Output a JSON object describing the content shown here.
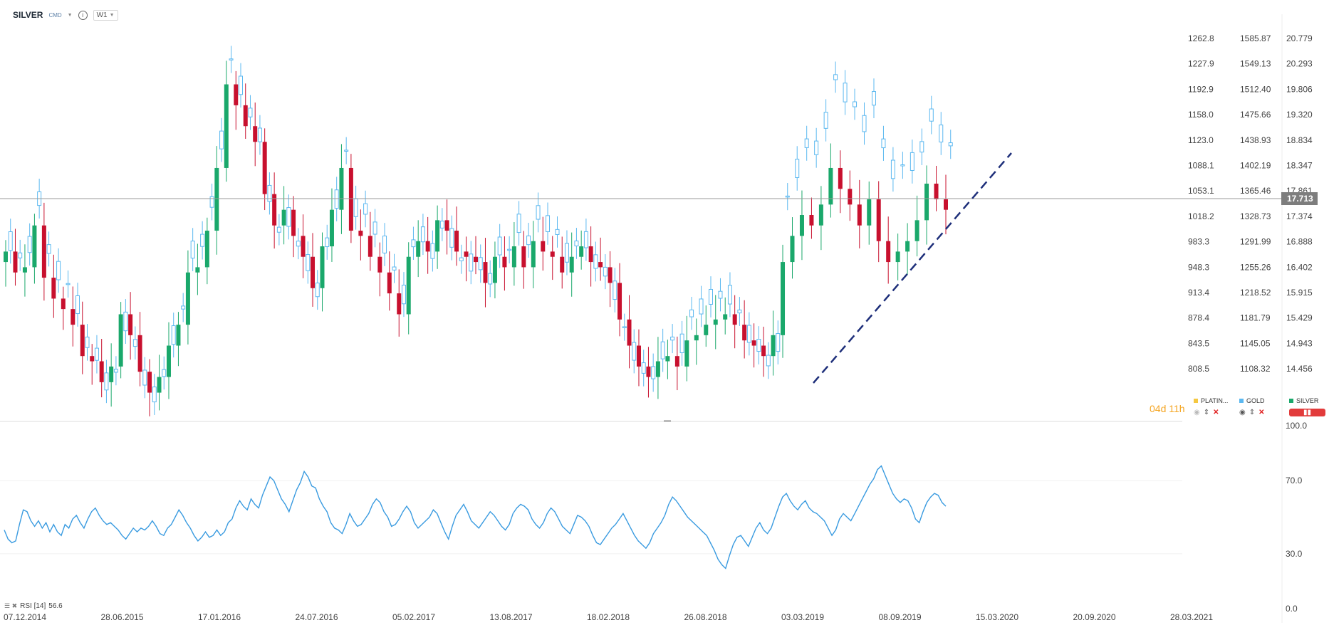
{
  "toolbar": {
    "symbol": "SILVER",
    "market": "CMD",
    "timeframe": "W1"
  },
  "countdown": "04d 11h",
  "legend": [
    {
      "name": "PLATIN...",
      "color": "#f5c842"
    },
    {
      "name": "GOLD",
      "color": "#5bb8f0"
    },
    {
      "name": "SILVER",
      "color": "#1aa86b"
    }
  ],
  "current_price_label": "17.713",
  "rsi_label": "RSI [14]",
  "rsi_value": "56.6",
  "colors": {
    "up": "#1aa86b",
    "down": "#c8102e",
    "gold": "#5bb8f0",
    "trendline": "#1e2f7a",
    "rsi_line": "#3a9be0",
    "grid": "#e8e8e8"
  },
  "chart_data": [
    {
      "type": "candlestick",
      "series": [
        {
          "name": "SILVER",
          "style": "candles",
          "color_up": "#1aa86b",
          "color_down": "#c8102e"
        },
        {
          "name": "GOLD",
          "style": "hollow candles",
          "color": "#5bb8f0"
        }
      ],
      "x_tick_labels": [
        "07.12.2014",
        "28.06.2015",
        "17.01.2016",
        "24.07.2016",
        "05.02.2017",
        "13.08.2017",
        "18.02.2018",
        "26.08.2018",
        "03.03.2019",
        "08.09.2019",
        "15.03.2020",
        "20.09.2020",
        "28.03.2021"
      ],
      "axis_platinum": [
        "1262.8",
        "1227.9",
        "1192.9",
        "1158.0",
        "1123.0",
        "1088.1",
        "1053.1",
        "1018.2",
        "983.3",
        "948.3",
        "913.4",
        "878.4",
        "843.5",
        "808.5"
      ],
      "axis_gold": [
        "1585.87",
        "1549.13",
        "1512.40",
        "1475.66",
        "1438.93",
        "1402.19",
        "1365.46",
        "1328.73",
        "1291.99",
        "1255.26",
        "1218.52",
        "1181.79",
        "1145.05",
        "1108.32"
      ],
      "axis_silver": [
        "20.779",
        "20.293",
        "19.806",
        "19.320",
        "18.834",
        "18.347",
        "17.861",
        "17.374",
        "16.888",
        "16.402",
        "15.915",
        "15.429",
        "14.943",
        "14.456"
      ],
      "silver_weekly_close_samples": [
        16.7,
        16.3,
        16.4,
        17.2,
        16.2,
        15.8,
        15.6,
        15.3,
        14.7,
        14.6,
        14.2,
        14.5,
        15.5,
        15.1,
        14.4,
        14.0,
        14.3,
        14.9,
        15.3,
        16.3,
        16.4,
        17.1,
        18.3,
        19.9,
        19.5,
        19.1,
        18.8,
        17.8,
        17.2,
        17.5,
        17.0,
        16.6,
        16.0,
        16.8,
        17.5,
        18.3,
        17.1,
        17.0,
        16.6,
        16.3,
        15.9,
        15.5,
        16.6,
        16.9,
        16.7,
        17.3,
        17.1,
        16.7,
        16.6,
        16.5,
        16.1,
        16.6,
        16.4,
        16.8,
        16.4,
        16.9,
        16.7,
        16.6,
        16.3,
        16.6,
        16.8,
        16.5,
        16.4,
        16.1,
        15.4,
        14.9,
        14.5,
        14.3,
        14.6,
        14.7,
        14.5,
        15.0,
        15.1,
        15.3,
        15.4,
        15.5,
        15.3,
        15.0,
        14.9,
        14.7,
        15.1,
        16.5,
        17.0,
        17.4,
        17.2,
        17.6,
        18.3,
        17.9,
        17.6,
        17.2,
        17.7,
        16.9,
        16.5,
        16.7,
        16.9,
        17.3,
        18.0,
        17.7,
        17.5
      ],
      "trendline": {
        "style": "dashed",
        "from_date": "03.03.2019",
        "to_date": "15.03.2020",
        "direction": "ascending"
      },
      "current_price": 17.713,
      "grid": true
    },
    {
      "type": "line",
      "title": "",
      "series": [
        {
          "name": "RSI [14]",
          "color": "#3a9be0"
        }
      ],
      "ylim": [
        0,
        100
      ],
      "y_tick_labels": [
        "100.0",
        "70.0",
        "30.0",
        "0.0"
      ],
      "values": [
        43,
        38,
        36,
        37,
        46,
        54,
        53,
        48,
        45,
        48,
        44,
        47,
        42,
        46,
        42,
        40,
        46,
        44,
        49,
        51,
        47,
        44,
        49,
        53,
        55,
        51,
        48,
        46,
        47,
        45,
        43,
        40,
        38,
        41,
        44,
        42,
        44,
        43,
        45,
        48,
        45,
        41,
        40,
        44,
        46,
        50,
        54,
        51,
        47,
        44,
        40,
        37,
        39,
        42,
        39,
        40,
        43,
        40,
        42,
        47,
        49,
        55,
        59,
        56,
        54,
        60,
        57,
        55,
        62,
        67,
        72,
        70,
        65,
        60,
        57,
        53,
        59,
        65,
        69,
        75,
        72,
        67,
        66,
        60,
        56,
        53,
        47,
        44,
        43,
        41,
        46,
        52,
        48,
        45,
        46,
        49,
        52,
        57,
        60,
        58,
        53,
        50,
        45,
        46,
        49,
        53,
        56,
        53,
        47,
        44,
        46,
        48,
        50,
        54,
        52,
        47,
        42,
        38,
        45,
        51,
        54,
        57,
        53,
        48,
        46,
        44,
        47,
        50,
        53,
        51,
        48,
        45,
        43,
        46,
        52,
        55,
        57,
        56,
        54,
        49,
        46,
        44,
        47,
        52,
        55,
        53,
        49,
        45,
        43,
        41,
        46,
        51,
        50,
        48,
        45,
        40,
        36,
        35,
        38,
        41,
        44,
        46,
        49,
        52,
        48,
        44,
        40,
        37,
        35,
        33,
        36,
        41,
        44,
        47,
        51,
        57,
        61,
        59,
        56,
        53,
        50,
        48,
        46,
        44,
        42,
        40,
        36,
        32,
        27,
        24,
        22,
        29,
        35,
        39,
        40,
        37,
        34,
        39,
        44,
        47,
        43,
        41,
        44,
        50,
        56,
        61,
        63,
        59,
        56,
        54,
        57,
        59,
        55,
        53,
        52,
        50,
        48,
        44,
        40,
        43,
        49,
        52,
        50,
        48,
        52,
        56,
        60,
        64,
        68,
        71,
        76,
        78,
        73,
        68,
        63,
        60,
        58,
        60,
        59,
        55,
        49,
        47,
        53,
        58,
        61,
        63,
        62,
        58,
        56
      ]
    }
  ]
}
